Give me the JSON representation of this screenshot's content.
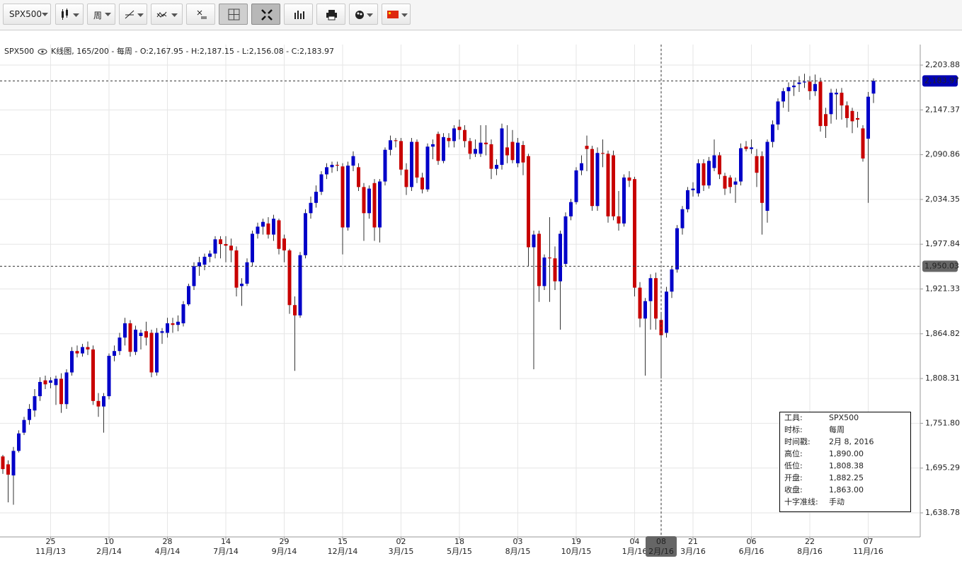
{
  "toolbar": {
    "symbol": "SPX500",
    "period": "周"
  },
  "chart_data": {
    "type": "candlestick",
    "title": "SPX500",
    "subtitle": "K线图, 165/200 - 每周 - O:2,167.95 - H:2,187.15 - L:2,156.08 - C:2,183.97",
    "categories": [
      null,
      null,
      null,
      null,
      null,
      null,
      null,
      null,
      null,
      "25",
      null,
      null,
      null,
      null,
      null,
      null,
      null,
      null,
      null,
      null,
      "10",
      null,
      null,
      null,
      null,
      null,
      null,
      null,
      null,
      null,
      null,
      "28",
      null,
      null,
      null,
      null,
      null,
      null,
      null,
      null,
      null,
      null,
      "14",
      null,
      null,
      null,
      null,
      null,
      null,
      null,
      null,
      null,
      null,
      "29",
      null,
      null,
      null,
      null,
      null,
      null,
      null,
      null,
      null,
      null,
      "15",
      null,
      null,
      null,
      null,
      null,
      null,
      null,
      null,
      null,
      null,
      "02",
      null,
      null,
      null,
      null,
      null,
      null,
      null,
      null,
      null,
      null,
      "18",
      null,
      null,
      null,
      null,
      null,
      null,
      null,
      null,
      null,
      null,
      "03",
      null,
      null,
      null,
      null,
      null,
      null,
      null,
      null,
      null,
      null,
      "19",
      null,
      null,
      null,
      null,
      null,
      null,
      null,
      null,
      null,
      null,
      "04",
      null,
      null,
      null,
      null,
      "08",
      null,
      null,
      null,
      null,
      null,
      "21",
      null,
      null,
      null,
      null,
      null,
      null,
      null,
      null,
      null,
      null,
      "06",
      null,
      null,
      null,
      null,
      null,
      null,
      null,
      null,
      null,
      null,
      "22",
      null,
      null,
      null,
      null,
      null,
      null,
      null,
      null,
      null,
      null,
      "07",
      null
    ],
    "category_sublabels": [
      null,
      null,
      null,
      null,
      null,
      null,
      null,
      null,
      null,
      "11月/13",
      null,
      null,
      null,
      null,
      null,
      null,
      null,
      null,
      null,
      null,
      "2月/14",
      null,
      null,
      null,
      null,
      null,
      null,
      null,
      null,
      null,
      null,
      "4月/14",
      null,
      null,
      null,
      null,
      null,
      null,
      null,
      null,
      null,
      null,
      "7月/14",
      null,
      null,
      null,
      null,
      null,
      null,
      null,
      null,
      null,
      null,
      "9月/14",
      null,
      null,
      null,
      null,
      null,
      null,
      null,
      null,
      null,
      null,
      "12月/14",
      null,
      null,
      null,
      null,
      null,
      null,
      null,
      null,
      null,
      null,
      "3月/15",
      null,
      null,
      null,
      null,
      null,
      null,
      null,
      null,
      null,
      null,
      "5月/15",
      null,
      null,
      null,
      null,
      null,
      null,
      null,
      null,
      null,
      null,
      "8月/15",
      null,
      null,
      null,
      null,
      null,
      null,
      null,
      null,
      null,
      null,
      "10月/15",
      null,
      null,
      null,
      null,
      null,
      null,
      null,
      null,
      null,
      null,
      "1月/16",
      null,
      null,
      null,
      null,
      "2月/16",
      null,
      null,
      null,
      null,
      null,
      "3月/16",
      null,
      null,
      null,
      null,
      null,
      null,
      null,
      null,
      null,
      null,
      "6月/16",
      null,
      null,
      null,
      null,
      null,
      null,
      null,
      null,
      null,
      null,
      "8月/16",
      null,
      null,
      null,
      null,
      null,
      null,
      null,
      null,
      null,
      null,
      "11月/16",
      null
    ],
    "open": [
      1710,
      1700,
      1686,
      1717,
      1740,
      1756,
      1768,
      1786,
      1806,
      1803,
      1800,
      1808,
      1776,
      1816,
      1843,
      1840,
      1848,
      1845,
      1780,
      1773,
      1786,
      1837,
      1843,
      1860,
      1878,
      1842,
      1862,
      1868,
      1866,
      1816,
      1866,
      1866,
      1878,
      1876,
      1878,
      1902,
      1925,
      1950,
      1952,
      1962,
      1966,
      1984,
      1978,
      1976,
      1970,
      1925,
      1928,
      1955,
      1991,
      2000,
      2004,
      1990,
      2008,
      1985,
      1970,
      1901,
      1888,
      1964,
      2017,
      2030,
      2044,
      2066,
      2075,
      2078,
      2076,
      1999,
      2077,
      2075,
      2050,
      2017,
      2055,
      1999,
      2057,
      2097,
      2109,
      2108,
      2072,
      2050,
      2107,
      2062,
      2047,
      2101,
      2117,
      2083,
      2112,
      2108,
      2126,
      2122,
      2108,
      2092,
      2092,
      2106,
      2104,
      2073,
      2078,
      2100,
      2107,
      2080,
      2103,
      2089,
      1974,
      1991,
      1925,
      1961,
      1960,
      1931,
      1953,
      2013,
      2031,
      2071,
      2102,
      2098,
      2026,
      2093,
      2092,
      2090,
      2013,
      2004,
      2062,
      2060,
      1923,
      1884,
      1906,
      1935,
      1882.25,
      1866,
      1918,
      1946,
      1998,
      2022,
      2046,
      2042,
      2080,
      2052,
      2074,
      2090,
      2064,
      2062,
      2053,
      2057,
      2101,
      2098,
      2089,
      2089,
      2020,
      2107,
      2129,
      2158,
      2171,
      2176,
      2180,
      2182,
      2183,
      2171,
      2183,
      2142,
      2142,
      2167,
      2169,
      2153,
      2146,
      2137,
      2124,
      2111,
      2167.95
    ],
    "high": [
      1712,
      1705,
      1722,
      1743,
      1760,
      1776,
      1795,
      1810,
      1812,
      1810,
      1812,
      1815,
      1820,
      1848,
      1850,
      1852,
      1855,
      1850,
      1790,
      1790,
      1840,
      1850,
      1866,
      1885,
      1882,
      1875,
      1870,
      1880,
      1870,
      1872,
      1872,
      1885,
      1885,
      1888,
      1906,
      1928,
      1955,
      1962,
      1966,
      1970,
      1988,
      1988,
      1988,
      1985,
      1975,
      1935,
      1960,
      1995,
      2005,
      2010,
      2012,
      2015,
      2010,
      1990,
      1972,
      1912,
      1968,
      2022,
      2038,
      2052,
      2070,
      2080,
      2082,
      2082,
      2080,
      2082,
      2095,
      2080,
      2055,
      2052,
      2060,
      2060,
      2100,
      2115,
      2112,
      2112,
      2080,
      2112,
      2110,
      2068,
      2105,
      2110,
      2120,
      2118,
      2118,
      2128,
      2135,
      2128,
      2112,
      2110,
      2128,
      2128,
      2110,
      2085,
      2130,
      2128,
      2122,
      2112,
      2108,
      2092,
      1995,
      1995,
      1965,
      2012,
      1975,
      1995,
      2018,
      2035,
      2075,
      2090,
      2115,
      2102,
      2100,
      2110,
      2096,
      2096,
      2045,
      2066,
      2070,
      2063,
      1930,
      1910,
      1940,
      1942,
      1890,
      1924,
      1950,
      2002,
      2026,
      2050,
      2056,
      2085,
      2085,
      2088,
      2110,
      2094,
      2068,
      2065,
      2062,
      2105,
      2108,
      2110,
      2098,
      2095,
      2110,
      2134,
      2162,
      2175,
      2182,
      2185,
      2190,
      2193,
      2190,
      2192,
      2188,
      2150,
      2174,
      2174,
      2175,
      2158,
      2150,
      2145,
      2128,
      2170,
      2187.15
    ],
    "low": [
      1688,
      1652,
      1649,
      1715,
      1737,
      1750,
      1760,
      1780,
      1795,
      1796,
      1775,
      1765,
      1770,
      1812,
      1835,
      1836,
      1838,
      1775,
      1760,
      1740,
      1782,
      1830,
      1838,
      1850,
      1836,
      1838,
      1845,
      1850,
      1810,
      1812,
      1852,
      1860,
      1866,
      1868,
      1874,
      1900,
      1920,
      1938,
      1945,
      1955,
      1960,
      1960,
      1955,
      1955,
      1912,
      1900,
      1925,
      1950,
      1985,
      1990,
      1985,
      1982,
      1965,
      1955,
      1890,
      1818,
      1885,
      1960,
      2010,
      2024,
      2040,
      2060,
      2068,
      2070,
      1965,
      1995,
      2070,
      2045,
      1982,
      2010,
      1982,
      1980,
      2052,
      2090,
      2100,
      2065,
      2040,
      2045,
      2055,
      2042,
      2044,
      2085,
      2078,
      2080,
      2100,
      2100,
      2110,
      2100,
      2085,
      2088,
      2088,
      2090,
      2060,
      2065,
      2072,
      2080,
      2080,
      2075,
      2065,
      1950,
      1820,
      1905,
      1920,
      1905,
      1920,
      1870,
      1950,
      2008,
      2028,
      2065,
      2070,
      2020,
      2020,
      2075,
      2005,
      2008,
      1995,
      2000,
      2050,
      1912,
      1873,
      1812,
      1870,
      1870,
      1808.38,
      1860,
      1910,
      1942,
      1990,
      2018,
      2038,
      2038,
      2045,
      2048,
      2070,
      2060,
      2040,
      2042,
      2030,
      2052,
      2095,
      2092,
      2050,
      1990,
      2005,
      2100,
      2122,
      2150,
      2145,
      2165,
      2170,
      2175,
      2160,
      2165,
      2120,
      2112,
      2130,
      2135,
      2135,
      2125,
      2118,
      2125,
      2082,
      2030,
      2156.08
    ],
    "close": [
      1694,
      1687,
      1717,
      1739,
      1756,
      1770,
      1786,
      1804,
      1801,
      1806,
      1808,
      1776,
      1816,
      1843,
      1840,
      1848,
      1845,
      1780,
      1773,
      1786,
      1837,
      1843,
      1860,
      1878,
      1842,
      1870,
      1866,
      1860,
      1816,
      1866,
      1868,
      1878,
      1876,
      1880,
      1902,
      1925,
      1950,
      1955,
      1962,
      1966,
      1984,
      1978,
      1976,
      1970,
      1923,
      1928,
      1955,
      1991,
      2000,
      2006,
      1990,
      2010,
      1972,
      1970,
      1901,
      1888,
      1964,
      2017,
      2030,
      2044,
      2066,
      2075,
      2078,
      2077,
      1999,
      2077,
      2089,
      2050,
      2017,
      2048,
      1999,
      2057,
      2097,
      2109,
      2108,
      2072,
      2050,
      2107,
      2062,
      2047,
      2101,
      2104,
      2083,
      2113,
      2108,
      2124,
      2122,
      2108,
      2092,
      2098,
      2106,
      2104,
      2073,
      2078,
      2124,
      2090,
      2084,
      2106,
      2081,
      1974,
      1990,
      1925,
      1961,
      1960,
      1931,
      1991,
      2013,
      2031,
      2071,
      2080,
      2098,
      2026,
      2093,
      2092,
      2013,
      2013,
      2004,
      2062,
      2058,
      1923,
      1884,
      1906,
      1935,
      1884,
      1863,
      1918,
      1946,
      1998,
      2022,
      2046,
      2048,
      2080,
      2052,
      2083,
      2090,
      2066,
      2048,
      2050,
      2057,
      2099,
      2098,
      2100,
      2068,
      2030,
      2107,
      2129,
      2158,
      2171,
      2176,
      2178,
      2182,
      2183,
      2171,
      2180,
      2127,
      2127,
      2169,
      2169,
      2153,
      2137,
      2133,
      2135,
      2086,
      2164,
      2183.97
    ],
    "up_color": "#0000c8",
    "down_color": "#c80000",
    "ylim": [
      1608.4,
      2229.8
    ],
    "yticks": [
      {
        "value": 1638.78,
        "label": "1,638.78"
      },
      {
        "value": 1695.29,
        "label": "1,695.29"
      },
      {
        "value": 1751.8,
        "label": "1,751.80"
      },
      {
        "value": 1808.31,
        "label": "1,808.31"
      },
      {
        "value": 1864.82,
        "label": "1,864.82"
      },
      {
        "value": 1921.33,
        "label": "1,921.33"
      },
      {
        "value": 1977.84,
        "label": "1,977.84"
      },
      {
        "value": 2034.35,
        "label": "2,034.35"
      },
      {
        "value": 2090.86,
        "label": "2,090.86"
      },
      {
        "value": 2147.37,
        "label": "2,147.37"
      },
      {
        "value": 2203.88,
        "label": "2,203.88"
      }
    ],
    "grid": true,
    "last_price": {
      "value": 2183.97,
      "label": "2,183.97"
    },
    "crosshair": {
      "value": 1950.03,
      "label": "1,950.03",
      "category": 124
    }
  },
  "info_box": {
    "rows": [
      [
        "工具:",
        "SPX500"
      ],
      [
        "时标:",
        "每周"
      ],
      [
        "时间戳:",
        "2月 8, 2016"
      ],
      [
        "高位:",
        "1,890.00"
      ],
      [
        "低位:",
        "1,808.38"
      ],
      [
        "开盘:",
        "1,882.25"
      ],
      [
        "收盘:",
        "1,863.00"
      ],
      [
        "十字准线:",
        "手动"
      ]
    ]
  }
}
